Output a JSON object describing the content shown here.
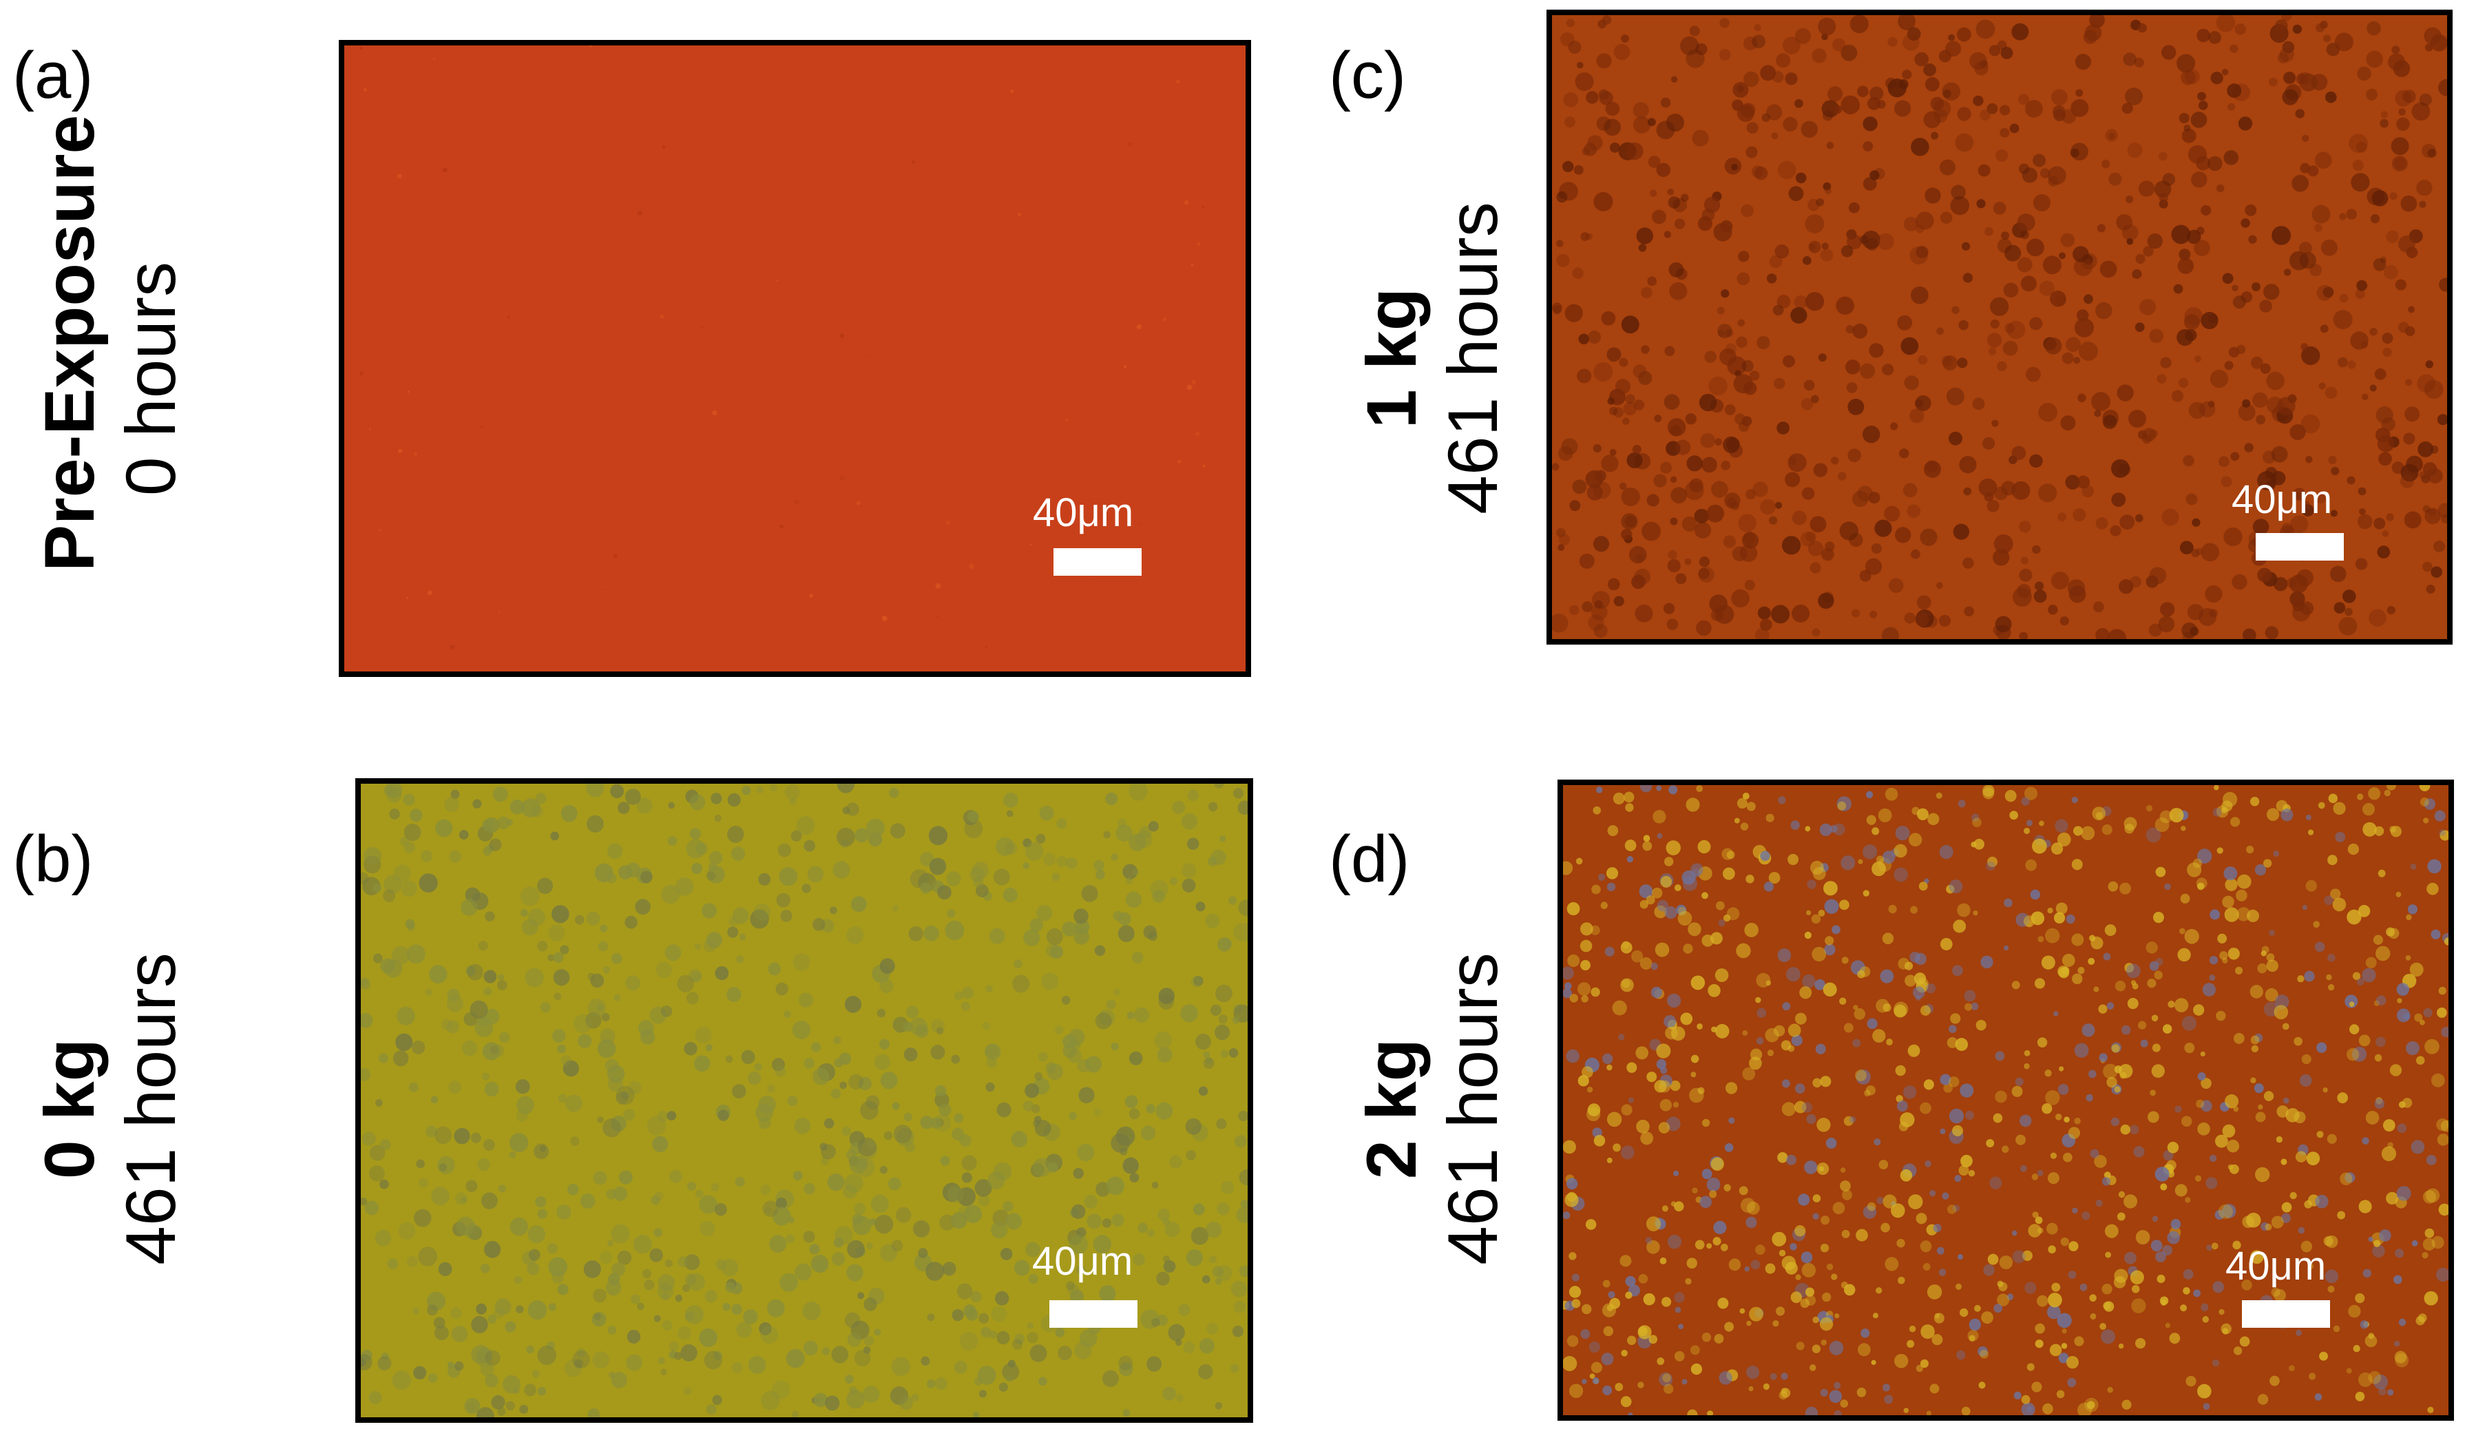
{
  "panels": [
    {
      "id": "a",
      "letter": "(a)",
      "condition": "Pre-Exposure",
      "duration": "0 hours",
      "scale_label": "40μm",
      "base_color": "#c8401a",
      "speckle_color": "#d9551f",
      "dark_color": "#b53612"
    },
    {
      "id": "b",
      "letter": "(b)",
      "condition": "0 kg",
      "duration": "461 hours",
      "scale_label": "40μm",
      "base_color": "#a79a1a",
      "speckle_color": "#8a8e3a",
      "dark_color": "#777a40"
    },
    {
      "id": "c",
      "letter": "(c)",
      "condition": "1 kg",
      "duration": "461 hours",
      "scale_label": "40μm",
      "base_color": "#a8420e",
      "speckle_color": "#7a2a08",
      "dark_color": "#5e1f06"
    },
    {
      "id": "d",
      "letter": "(d)",
      "condition": "2 kg",
      "duration": "461 hours",
      "scale_label": "40μm",
      "base_color": "#a3400c",
      "speckle_color": "#d8b226",
      "dark_color": "#6c74a0"
    }
  ]
}
